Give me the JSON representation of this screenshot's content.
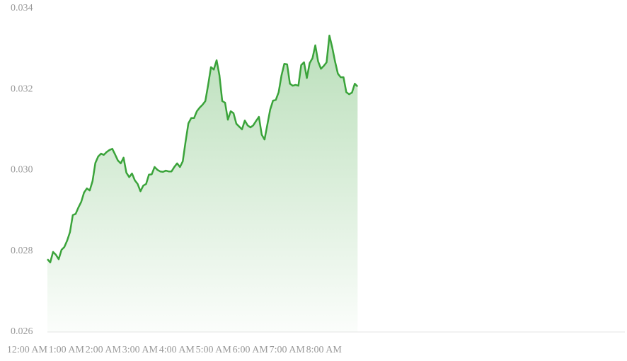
{
  "chart_data": {
    "type": "area",
    "x": [
      0,
      4.6,
      9.2,
      13.8,
      18.4,
      23,
      27.6,
      32.2,
      36.8,
      41.4,
      46,
      50.6,
      55.2,
      59.8,
      64.4,
      69,
      73.6,
      78.2,
      82.8,
      87.4,
      92,
      96.6,
      101.2,
      105.8,
      110.4,
      115,
      119.6,
      124.2,
      128.8,
      133.4,
      138,
      142.6,
      147.2,
      151.8,
      156.4,
      161,
      165.6,
      170.2,
      174.8,
      179.4,
      184,
      188.6,
      193.2,
      197.8,
      202.4,
      207,
      211.6,
      216.2,
      220.8,
      225.4,
      230,
      234.6,
      239.2,
      243.8,
      248.4,
      253,
      257.6,
      262.2,
      266.8,
      271.4,
      276,
      280.6,
      285.2,
      289.8,
      294.4,
      299,
      303.6,
      308.2,
      312.8,
      317.4,
      322,
      326.6,
      331.2,
      335.8,
      340.4,
      345,
      349.6,
      354.2,
      358.8,
      363.4,
      368,
      372.6,
      377.2,
      381.8,
      386.4,
      391,
      395.6,
      400.2,
      404.8,
      409.4,
      414,
      418.6,
      423.2,
      427.8,
      432.4,
      437,
      441.6,
      446.2,
      450.8,
      455.4,
      460,
      464.6,
      469.2,
      473.8,
      478.4,
      483,
      487.6,
      492.2,
      496.8,
      501.4,
      506
    ],
    "values": [
      0.0278,
      0.02772,
      0.02798,
      0.02791,
      0.0278,
      0.02803,
      0.0281,
      0.02826,
      0.02847,
      0.02889,
      0.02892,
      0.02908,
      0.02922,
      0.02945,
      0.02955,
      0.0295,
      0.02973,
      0.03018,
      0.03034,
      0.03041,
      0.03038,
      0.03045,
      0.0305,
      0.03053,
      0.03039,
      0.03024,
      0.03017,
      0.03031,
      0.02994,
      0.02983,
      0.02992,
      0.02975,
      0.02966,
      0.02948,
      0.02962,
      0.02966,
      0.02989,
      0.0299,
      0.03008,
      0.03001,
      0.02997,
      0.02996,
      0.02999,
      0.02997,
      0.02997,
      0.03008,
      0.03017,
      0.03008,
      0.03022,
      0.03071,
      0.03116,
      0.03129,
      0.03129,
      0.03146,
      0.03155,
      0.03162,
      0.03171,
      0.03211,
      0.03255,
      0.03249,
      0.03272,
      0.03235,
      0.03171,
      0.03167,
      0.03125,
      0.03146,
      0.03141,
      0.03115,
      0.03108,
      0.03101,
      0.03123,
      0.03111,
      0.03106,
      0.03111,
      0.03122,
      0.03132,
      0.03088,
      0.03076,
      0.03113,
      0.0315,
      0.03172,
      0.03174,
      0.03193,
      0.03234,
      0.03263,
      0.03262,
      0.03214,
      0.03209,
      0.03211,
      0.03209,
      0.0326,
      0.03267,
      0.03228,
      0.03265,
      0.03277,
      0.03309,
      0.03269,
      0.03251,
      0.03258,
      0.03267,
      0.03333,
      0.03304,
      0.03269,
      0.03239,
      0.0323,
      0.0323,
      0.03193,
      0.03188,
      0.03192,
      0.03214,
      0.03207
    ],
    "color": "#3aa33a",
    "xlim": [
      0,
      942
    ],
    "xticks": [
      {
        "value": 0,
        "label": "12:00 AM"
      },
      {
        "value": 60,
        "label": "1:00 AM"
      },
      {
        "value": 120,
        "label": "2:00 AM"
      },
      {
        "value": 180,
        "label": "3:00 AM"
      },
      {
        "value": 240,
        "label": "4:00 AM"
      },
      {
        "value": 300,
        "label": "5:00 AM"
      },
      {
        "value": 360,
        "label": "6:00 AM"
      },
      {
        "value": 420,
        "label": "7:00 AM"
      },
      {
        "value": 480,
        "label": "8:00 AM"
      }
    ],
    "ylim": [
      0.026,
      0.034
    ],
    "yticks": [
      0.026,
      0.028,
      {
        "value": 0.03,
        "label": "0.030"
      },
      0.032,
      0.034
    ]
  }
}
